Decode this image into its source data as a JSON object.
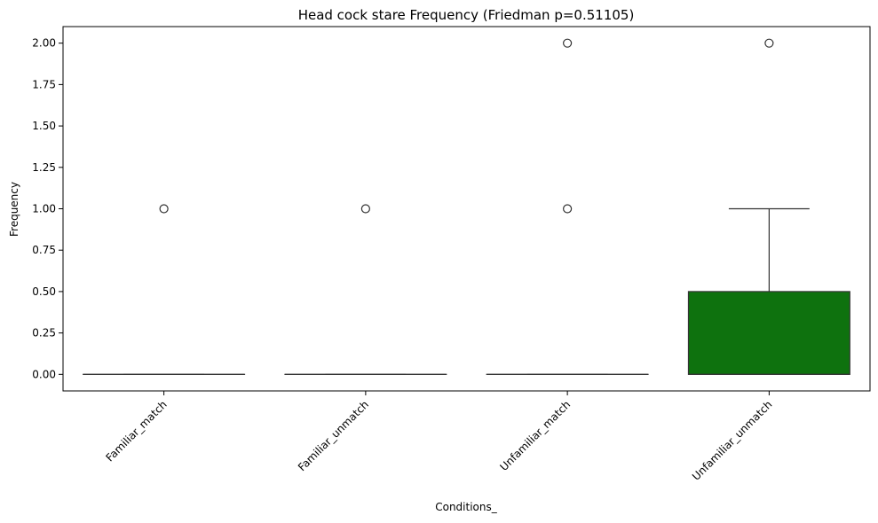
{
  "chart_data": {
    "type": "box",
    "title": "Head cock stare Frequency (Friedman p=0.51105)",
    "xlabel": "Conditions_",
    "ylabel": "Frequency",
    "ylim": [
      -0.1,
      2.1
    ],
    "yticks": [
      0.0,
      0.25,
      0.5,
      0.75,
      1.0,
      1.25,
      1.5,
      1.75,
      2.0
    ],
    "ytick_labels": [
      "0.00",
      "0.25",
      "0.50",
      "0.75",
      "1.00",
      "1.25",
      "1.50",
      "1.75",
      "2.00"
    ],
    "grid": false,
    "categories": [
      "Familiar_match",
      "Familiar_unmatch",
      "Unfamiliar_match",
      "Unfamiliar_unmatch"
    ],
    "boxes": [
      {
        "category": "Familiar_match",
        "q1": 0,
        "median": 0,
        "q3": 0,
        "whisker_low": 0,
        "whisker_high": 0,
        "fliers": [
          1
        ],
        "color": "#ffffff"
      },
      {
        "category": "Familiar_unmatch",
        "q1": 0,
        "median": 0,
        "q3": 0,
        "whisker_low": 0,
        "whisker_high": 0,
        "fliers": [
          1
        ],
        "color": "#ffffff"
      },
      {
        "category": "Unfamiliar_match",
        "q1": 0,
        "median": 0,
        "q3": 0,
        "whisker_low": 0,
        "whisker_high": 0,
        "fliers": [
          1,
          2
        ],
        "color": "#ffffff"
      },
      {
        "category": "Unfamiliar_unmatch",
        "q1": 0,
        "median": 0,
        "q3": 0.5,
        "whisker_low": 0,
        "whisker_high": 1,
        "fliers": [
          2
        ],
        "color": "#0e720e"
      }
    ]
  }
}
